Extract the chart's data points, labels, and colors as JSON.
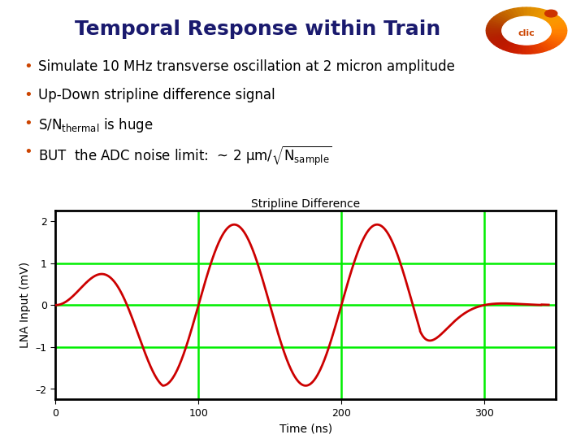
{
  "title": "Temporal Response within Train",
  "title_color": "#1a1a6e",
  "title_fontsize": 18,
  "title_fontweight": "bold",
  "bullet_fontsize": 12,
  "bullet_color": "#CC4400",
  "text_color": "#000000",
  "plot_title": "Stripline Difference",
  "plot_title_fontsize": 10,
  "xlabel": "Time (ns)",
  "ylabel": "LNA Input (mV)",
  "axis_fontsize": 10,
  "xlim": [
    0,
    350
  ],
  "ylim": [
    -2.25,
    2.25
  ],
  "yticks": [
    -2,
    -1,
    0,
    1,
    2
  ],
  "xticks": [
    0,
    100,
    200,
    300
  ],
  "line_color": "#CC0000",
  "line_width": 2.0,
  "grid_color": "#00EE00",
  "grid_linewidth": 1.8,
  "bg_color": "#FFFFFF",
  "plot_bg_color": "#FFFFFF",
  "freq_MHz": 10,
  "t_max_ns": 345,
  "envelope_rise_ns": 75,
  "envelope_full_start_ns": 75,
  "envelope_full_end_ns": 255,
  "envelope_fall_end_ns": 340,
  "amplitude": 1.92,
  "decay_rate": 6.0,
  "small_amplitude": 0.07
}
